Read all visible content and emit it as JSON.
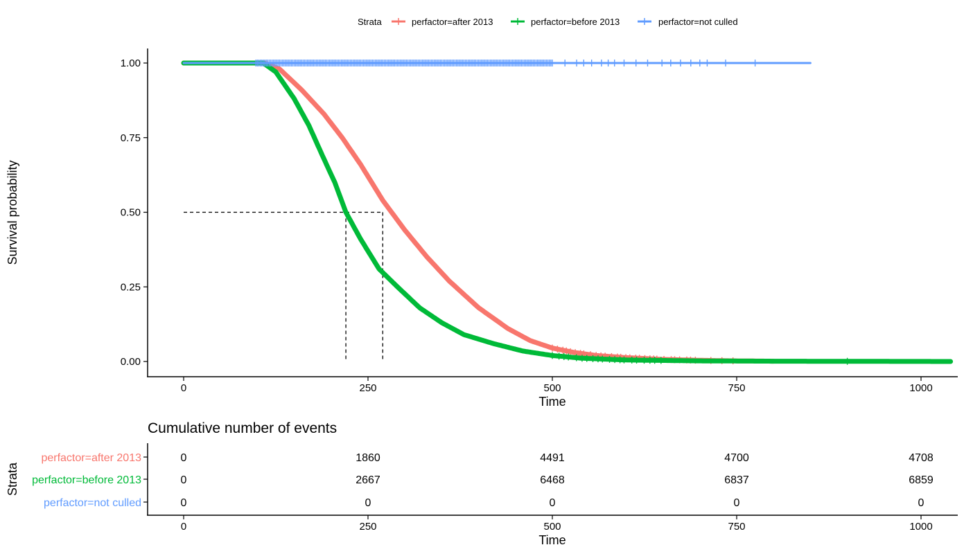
{
  "legend": {
    "title": "Strata",
    "items": [
      {
        "label": "perfactor=after 2013",
        "color": "#F8766D"
      },
      {
        "label": "perfactor=before 2013",
        "color": "#00BA38"
      },
      {
        "label": "perfactor=not culled",
        "color": "#619CFF"
      }
    ]
  },
  "chart_data": [
    {
      "type": "line",
      "chart_kind": "kaplan-meier survival curve",
      "xlabel": "Time",
      "ylabel": "Survival probability",
      "xlim": [
        -50,
        1045
      ],
      "ylim": [
        -0.05,
        1.05
      ],
      "x_ticks": [
        0,
        250,
        500,
        750,
        1000
      ],
      "y_ticks": [
        0.0,
        0.25,
        0.5,
        0.75,
        1.0
      ],
      "y_tick_labels": [
        "0.00",
        "0.25",
        "0.50",
        "0.75",
        "1.00"
      ],
      "grid": false,
      "legend_position": "top",
      "series": [
        {
          "name": "perfactor=after 2013",
          "color": "#F8766D",
          "points": [
            [
              0,
              1
            ],
            [
              110,
              1
            ],
            [
              130,
              0.98
            ],
            [
              160,
              0.91
            ],
            [
              190,
              0.83
            ],
            [
              215,
              0.75
            ],
            [
              240,
              0.66
            ],
            [
              270,
              0.54
            ],
            [
              300,
              0.44
            ],
            [
              330,
              0.35
            ],
            [
              360,
              0.27
            ],
            [
              400,
              0.18
            ],
            [
              440,
              0.11
            ],
            [
              470,
              0.07
            ],
            [
              500,
              0.045
            ],
            [
              530,
              0.03
            ],
            [
              560,
              0.02
            ],
            [
              600,
              0.013
            ],
            [
              650,
              0.007
            ],
            [
              700,
              0.004
            ],
            [
              750,
              0.002
            ],
            [
              800,
              0.001
            ]
          ],
          "median": 270
        },
        {
          "name": "perfactor=before 2013",
          "color": "#00BA38",
          "points": [
            [
              0,
              1
            ],
            [
              108,
              1
            ],
            [
              125,
              0.97
            ],
            [
              150,
              0.88
            ],
            [
              170,
              0.79
            ],
            [
              190,
              0.68
            ],
            [
              205,
              0.6
            ],
            [
              220,
              0.5
            ],
            [
              240,
              0.41
            ],
            [
              265,
              0.31
            ],
            [
              290,
              0.25
            ],
            [
              320,
              0.18
            ],
            [
              350,
              0.13
            ],
            [
              380,
              0.09
            ],
            [
              420,
              0.06
            ],
            [
              460,
              0.035
            ],
            [
              500,
              0.02
            ],
            [
              540,
              0.011
            ],
            [
              600,
              0.005
            ],
            [
              700,
              0.002
            ],
            [
              800,
              0.001
            ],
            [
              1040,
              0.0
            ]
          ],
          "median": 220
        },
        {
          "name": "perfactor=not culled",
          "color": "#619CFF",
          "points": [
            [
              0,
              1
            ],
            [
              850,
              1
            ]
          ]
        }
      ],
      "median_line_y": 0.5
    },
    {
      "type": "table",
      "title": "Cumulative number of events",
      "xlabel": "Time",
      "ylabel": "Strata",
      "x_ticks": [
        0,
        250,
        500,
        750,
        1000
      ],
      "rows": [
        {
          "label": "perfactor=after 2013",
          "color": "#F8766D",
          "values": [
            0,
            1860,
            4491,
            4700,
            4708
          ]
        },
        {
          "label": "perfactor=before 2013",
          "color": "#00BA38",
          "values": [
            0,
            2667,
            6468,
            6837,
            6859
          ]
        },
        {
          "label": "perfactor=not culled",
          "color": "#619CFF",
          "values": [
            0,
            0,
            0,
            0,
            0
          ]
        }
      ]
    }
  ]
}
